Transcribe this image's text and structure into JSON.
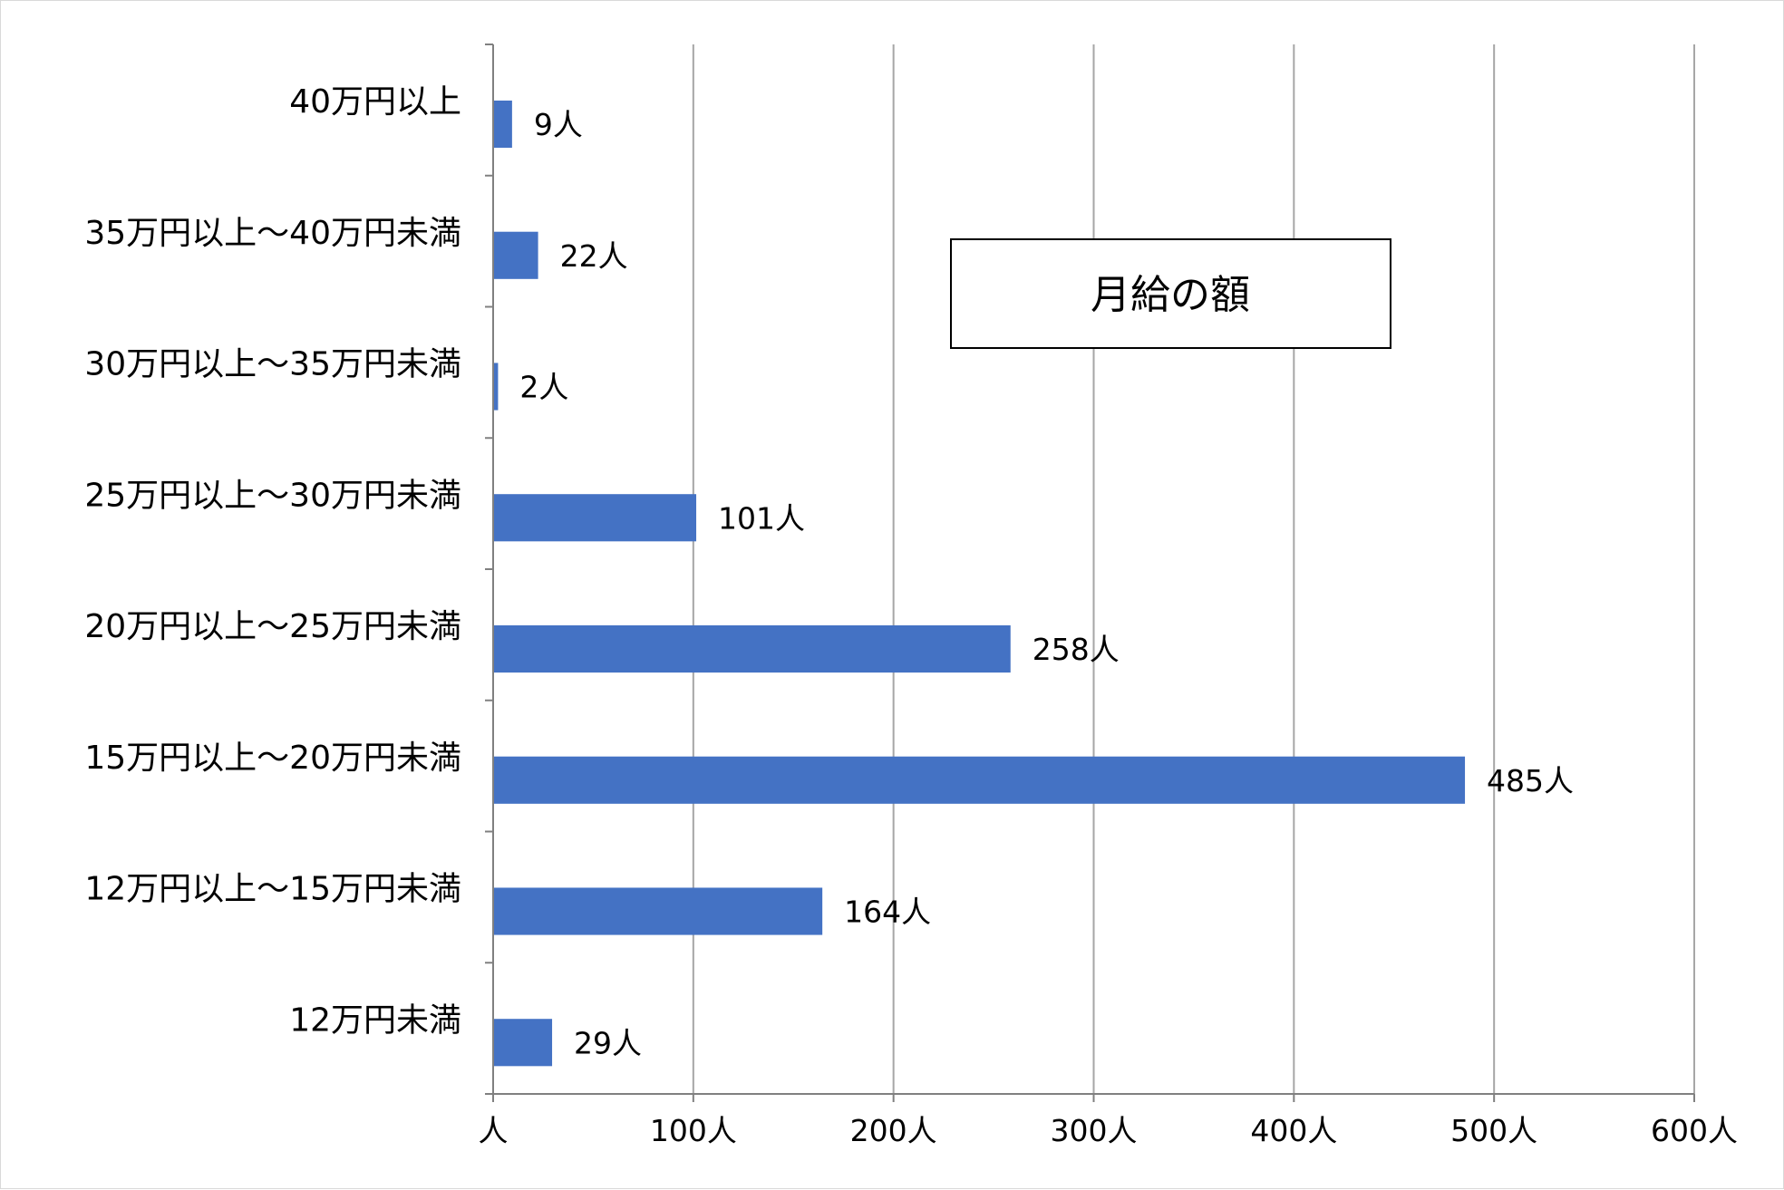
{
  "chart_data": {
    "type": "bar",
    "orientation": "horizontal",
    "title": "月給の額",
    "categories": [
      "40万円以上",
      "35万円以上～40万円未満",
      "30万円以上～35万円未満",
      "25万円以上～30万円未満",
      "20万円以上～25万円未満",
      "15万円以上～20万円未満",
      "12万円以上～15万円未満",
      "12万円未満"
    ],
    "values": [
      9,
      22,
      2,
      101,
      258,
      485,
      164,
      29
    ],
    "data_labels": [
      "9人",
      "22人",
      "2人",
      "101人",
      "258人",
      "485人",
      "164人",
      "29人"
    ],
    "x_ticks": [
      0,
      100,
      200,
      300,
      400,
      500,
      600
    ],
    "x_tick_labels": [
      "人",
      "100人",
      "200人",
      "300人",
      "400人",
      "500人",
      "600人"
    ],
    "xlim": [
      0,
      600
    ],
    "xlabel": "",
    "ylabel": "",
    "grid": "vertical",
    "legend": "none",
    "colors": {
      "bar": "#4472C4",
      "grid": "#a6a6a6",
      "axis": "#808080",
      "frame": "#d9d9d9"
    }
  }
}
